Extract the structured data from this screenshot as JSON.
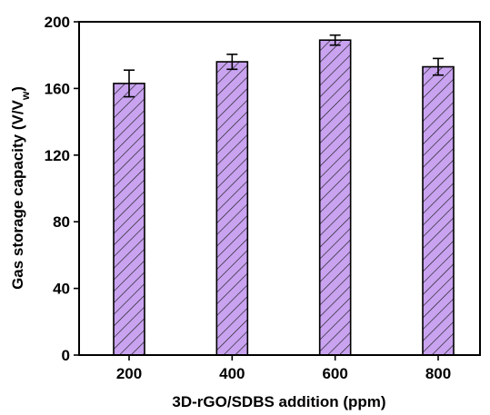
{
  "chart_data": {
    "type": "bar",
    "categories": [
      "200",
      "400",
      "600",
      "800"
    ],
    "values": [
      163,
      176,
      189,
      173
    ],
    "errors": [
      8,
      4.5,
      3,
      5
    ],
    "xlabel": "3D-rGO/SDBS addition (ppm)",
    "ylabel": {
      "main": "Gas storage capacity (V/V",
      "sub": "w",
      "close": ")"
    },
    "ylim": [
      0,
      200
    ],
    "yticks": [
      "0",
      "40",
      "80",
      "120",
      "160",
      "200"
    ],
    "bar_color": "#c9a3f0",
    "hatch_color": "#1a1a1a",
    "grid": false,
    "legend": "none"
  }
}
